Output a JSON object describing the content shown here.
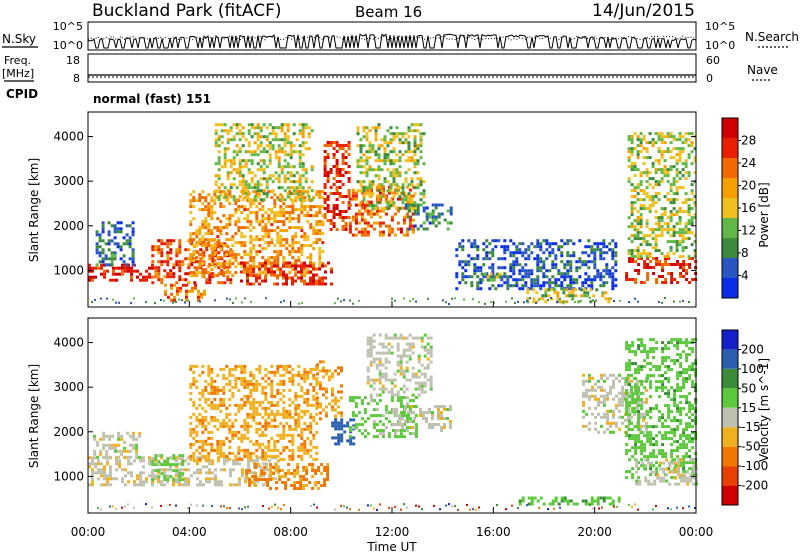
{
  "header": {
    "site": "Buckland Park (fitACF)",
    "beam": "Beam 16",
    "date": "14/Jun/2015"
  },
  "nsky_panel": {
    "left_label": "N.Sky",
    "right_label": "N.Search",
    "ticks": [
      "10^5",
      "10^0"
    ]
  },
  "freq_panel": {
    "left_label_1": "Freq.",
    "left_label_2": "[MHz]",
    "right_label": "Nave",
    "left_ticks": [
      "18",
      "8"
    ],
    "right_ticks": [
      "60",
      "0"
    ]
  },
  "cpid": {
    "label": "CPID",
    "mode": "normal (fast) 151"
  },
  "colors": {
    "power": [
      "#0a2ee6",
      "#2a56c4",
      "#3d8a3d",
      "#62b847",
      "#f0c020",
      "#f5a000",
      "#f06a00",
      "#e82000",
      "#d00000"
    ],
    "velocity": [
      "#1420c8",
      "#2a5fb0",
      "#3a8c3a",
      "#5cc83c",
      "#c0c0b0",
      "#f0b020",
      "#f07800",
      "#e84000",
      "#d00000"
    ]
  },
  "chart_data": [
    {
      "type": "heatmap",
      "name": "power",
      "title": "",
      "xlabel": "",
      "ylabel": "Slant Range [km]",
      "xlim": [
        "00:00",
        "24:00"
      ],
      "ylim": [
        180,
        4550
      ],
      "x_ticks": [
        "00:00",
        "04:00",
        "08:00",
        "12:00",
        "16:00",
        "20:00",
        "00:00"
      ],
      "y_ticks": [
        1000,
        2000,
        3000,
        4000
      ],
      "colorbar": {
        "label": "Power [dB]",
        "range": [
          0,
          32
        ],
        "ticks": [
          "4",
          "8",
          "12",
          "16",
          "20",
          "24",
          "28"
        ]
      },
      "regions": [
        {
          "t0": 0.0,
          "t1": 2.5,
          "r0": 780,
          "r1": 1150,
          "level": 28
        },
        {
          "t0": 0.3,
          "t1": 1.8,
          "r0": 1150,
          "r1": 2100,
          "level": 6
        },
        {
          "t0": 2.5,
          "t1": 5.6,
          "r0": 700,
          "r1": 1700,
          "level": 25
        },
        {
          "t0": 3.0,
          "t1": 4.6,
          "r0": 350,
          "r1": 700,
          "level": 22
        },
        {
          "t0": 4.0,
          "t1": 9.3,
          "r0": 900,
          "r1": 2800,
          "level": 20
        },
        {
          "t0": 5.0,
          "t1": 8.8,
          "r0": 2600,
          "r1": 4300,
          "level": 15
        },
        {
          "t0": 6.0,
          "t1": 9.6,
          "r0": 700,
          "r1": 1200,
          "level": 27
        },
        {
          "t0": 9.3,
          "t1": 10.3,
          "r0": 1900,
          "r1": 3900,
          "level": 27
        },
        {
          "t0": 10.3,
          "t1": 12.9,
          "r0": 1800,
          "r1": 2900,
          "level": 24
        },
        {
          "t0": 10.6,
          "t1": 13.3,
          "r0": 2400,
          "r1": 4300,
          "level": 14
        },
        {
          "t0": 12.5,
          "t1": 14.3,
          "r0": 1900,
          "r1": 2500,
          "level": 8
        },
        {
          "t0": 14.5,
          "t1": 20.8,
          "r0": 600,
          "r1": 1700,
          "level": 5
        },
        {
          "t0": 15.5,
          "t1": 16.5,
          "r0": 750,
          "r1": 950,
          "level": 12
        },
        {
          "t0": 17.3,
          "t1": 20.5,
          "r0": 330,
          "r1": 600,
          "level": 14
        },
        {
          "t0": 21.2,
          "t1": 24.0,
          "r0": 700,
          "r1": 1300,
          "level": 27
        },
        {
          "t0": 21.3,
          "t1": 24.0,
          "r0": 1300,
          "r1": 4100,
          "level": 14
        }
      ]
    },
    {
      "type": "heatmap",
      "name": "velocity",
      "title": "",
      "xlabel": "Time UT",
      "ylabel": "Slant Range [km]",
      "xlim": [
        "00:00",
        "24:00"
      ],
      "ylim": [
        180,
        4550
      ],
      "x_ticks": [
        "00:00",
        "04:00",
        "08:00",
        "12:00",
        "16:00",
        "20:00",
        "00:00"
      ],
      "y_ticks": [
        1000,
        2000,
        3000,
        4000
      ],
      "colorbar": {
        "label": "Velocity [m s^-1]",
        "ticks": [
          "200",
          "100",
          "50",
          "15",
          "-15",
          "-50",
          "-100",
          "-200"
        ]
      },
      "regions": [
        {
          "t0": 0.0,
          "t1": 7.5,
          "r0": 800,
          "r1": 1450,
          "level": -5
        },
        {
          "t0": 0.2,
          "t1": 2.0,
          "r0": 1450,
          "r1": 2000,
          "level": 0
        },
        {
          "t0": 2.5,
          "t1": 3.8,
          "r0": 900,
          "r1": 1500,
          "level": 30
        },
        {
          "t0": 4.0,
          "t1": 9.0,
          "r0": 1400,
          "r1": 3500,
          "level": -40
        },
        {
          "t0": 6.2,
          "t1": 9.4,
          "r0": 700,
          "r1": 1300,
          "level": -60
        },
        {
          "t0": 9.0,
          "t1": 10.0,
          "r0": 2300,
          "r1": 3600,
          "level": -45
        },
        {
          "t0": 9.6,
          "t1": 10.5,
          "r0": 1700,
          "r1": 2300,
          "level": 150
        },
        {
          "t0": 10.3,
          "t1": 13.0,
          "r0": 1900,
          "r1": 2800,
          "level": 30
        },
        {
          "t0": 11.0,
          "t1": 13.5,
          "r0": 2800,
          "r1": 4200,
          "level": 0
        },
        {
          "t0": 12.0,
          "t1": 14.3,
          "r0": 2000,
          "r1": 2600,
          "level": 0
        },
        {
          "t0": 17.0,
          "t1": 21.0,
          "r0": 350,
          "r1": 550,
          "level": 40
        },
        {
          "t0": 19.5,
          "t1": 22.0,
          "r0": 2000,
          "r1": 3300,
          "level": 0
        },
        {
          "t0": 21.2,
          "t1": 24.0,
          "r0": 1000,
          "r1": 4100,
          "level": 35
        },
        {
          "t0": 21.6,
          "t1": 24.0,
          "r0": 800,
          "r1": 1400,
          "level": 0
        }
      ]
    }
  ]
}
